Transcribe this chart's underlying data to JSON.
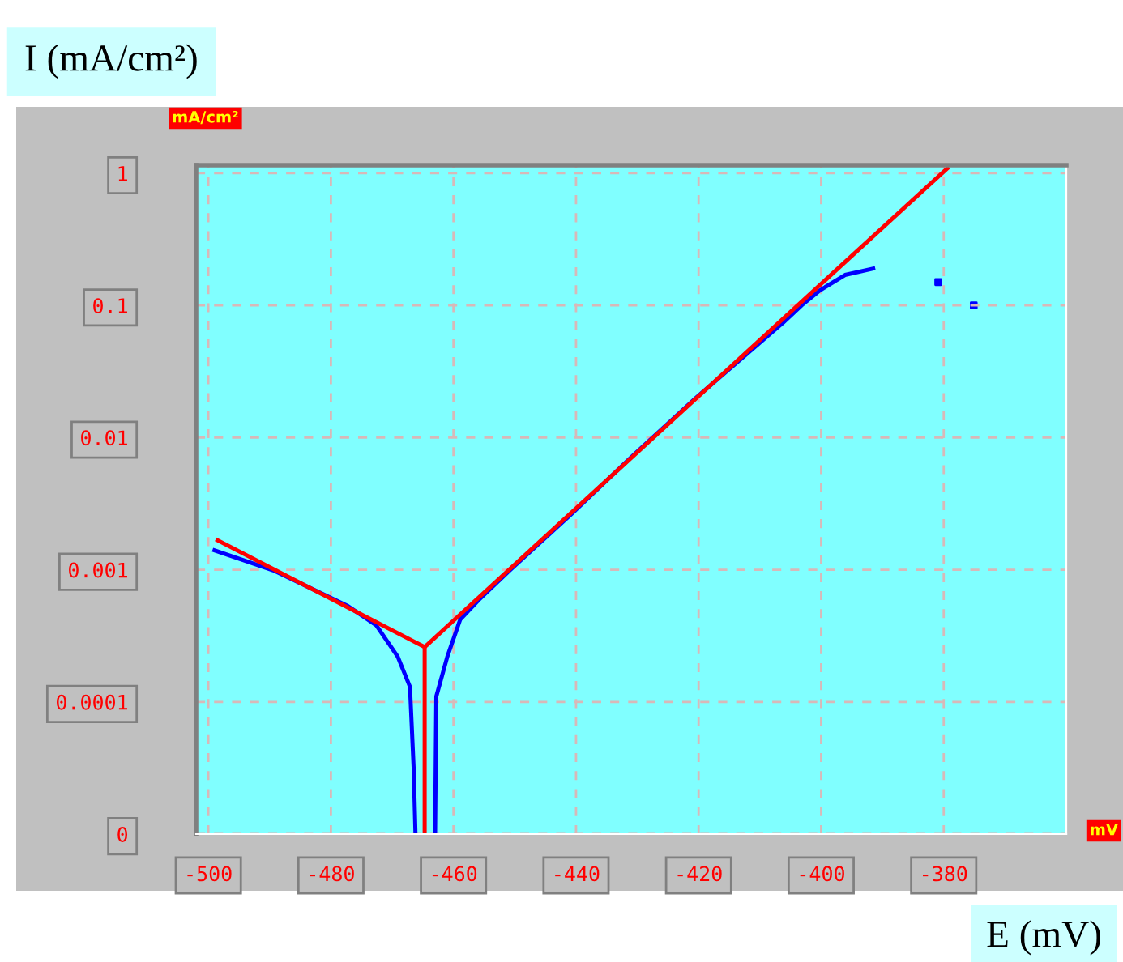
{
  "chart_data": {
    "type": "line",
    "xlabel": "E (mV)",
    "ylabel": "I (mA/cm²)",
    "log": "y",
    "xlim": [
      -502,
      -360
    ],
    "xticks": [
      -500,
      -480,
      -460,
      -440,
      -420,
      -400,
      -380
    ],
    "ylim": [
      1e-05,
      1.15
    ],
    "yticks": [
      {
        "value": 1e-05,
        "label": "0"
      },
      0.0001,
      0.001,
      0.01,
      0.1,
      1
    ],
    "grid": true,
    "line_style": "solid",
    "marker": "none",
    "annotations": [
      "mA/cm²",
      "mV"
    ],
    "series": [
      {
        "color": "#0000ff",
        "x": [
          -499.0,
          -489.4,
          -477.2,
          -472.6,
          -469.1,
          -467.1,
          -466.5,
          -466.2
        ],
        "values": [
          0.0014,
          0.00099,
          0.00053,
          0.00038,
          0.00022,
          0.00013,
          3.2e-05,
          1e-05
        ]
      },
      {
        "color": "#0000ff",
        "x": [
          -463.0,
          -462.8,
          -461.0,
          -458.9,
          -455.9,
          -450.8,
          -440.7,
          -430.6,
          -420.4,
          -406.2,
          -403.2,
          -400.2,
          -396.1,
          -391.5
        ],
        "values": [
          1e-05,
          0.00011,
          0.00022,
          0.00042,
          0.00059,
          0.00099,
          0.00265,
          0.0074,
          0.02,
          0.074,
          0.1,
          0.13,
          0.17,
          0.19
        ]
      },
      {
        "type": "scatter",
        "marker": "square",
        "color": "#0000ff",
        "x": [
          -380.9,
          -375.1
        ],
        "values": [
          0.15,
          0.1
        ]
      },
      {
        "color": "#ff0000",
        "x": [
          -498.5,
          -464.7,
          -379.4
        ],
        "values": [
          0.00167,
          0.00026,
          1.09
        ]
      },
      {
        "color": "#ff0000",
        "x": [
          -464.7,
          -464.7
        ],
        "values": [
          0.00026,
          1e-05
        ]
      }
    ]
  }
}
